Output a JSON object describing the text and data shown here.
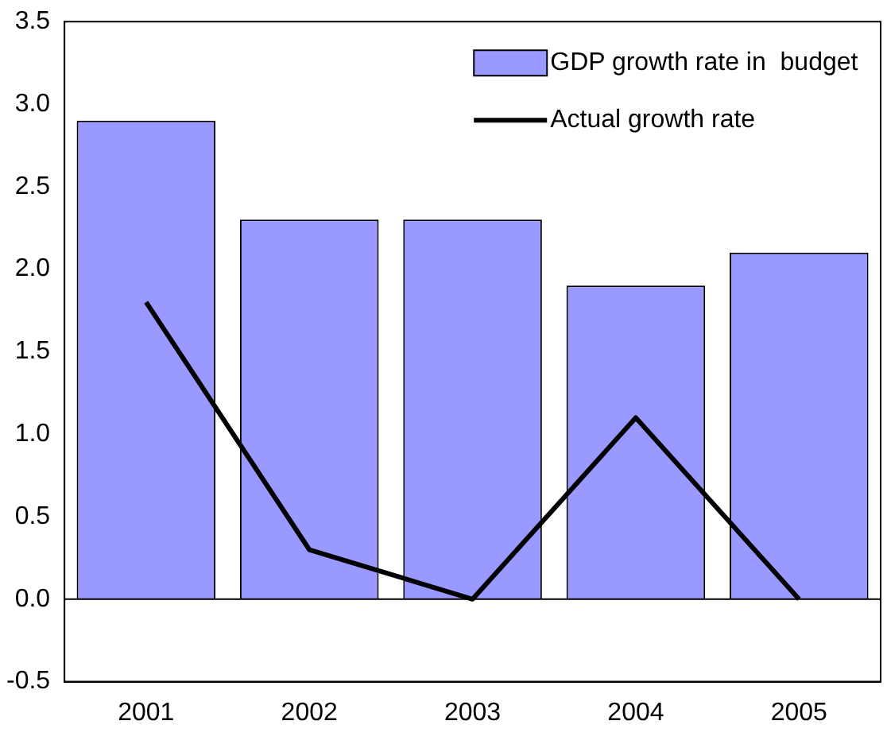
{
  "chart_data": {
    "type": "bar",
    "categories": [
      "2001",
      "2002",
      "2003",
      "2004",
      "2005"
    ],
    "series": [
      {
        "name": "GDP growth rate in  budget",
        "color": "#9999ff",
        "values": [
          2.9,
          2.3,
          2.3,
          1.9,
          2.1
        ]
      },
      {
        "name": "Actual growth rate",
        "type": "line",
        "color": "#000000",
        "values": [
          1.8,
          0.3,
          0.0,
          1.1,
          0.0
        ]
      }
    ],
    "ylim": [
      -0.5,
      3.5
    ],
    "yticks": [
      {
        "value": -0.5,
        "label": "-0.5"
      },
      {
        "value": 0,
        "label": "0.0"
      },
      {
        "value": 0.5,
        "label": "0.5"
      },
      {
        "value": 1,
        "label": "1.0"
      },
      {
        "value": 1.5,
        "label": "1.5"
      },
      {
        "value": 2,
        "label": "2.0"
      },
      {
        "value": 2.5,
        "label": "2.5"
      },
      {
        "value": 3,
        "label": "3.0"
      },
      {
        "value": 3.5,
        "label": "3.5"
      }
    ],
    "grid": false,
    "ref_lines": [
      {
        "axis": "y",
        "value": 0,
        "color": "#000000"
      }
    ],
    "legend": "top right",
    "marker": "none",
    "line_style": "solid"
  }
}
